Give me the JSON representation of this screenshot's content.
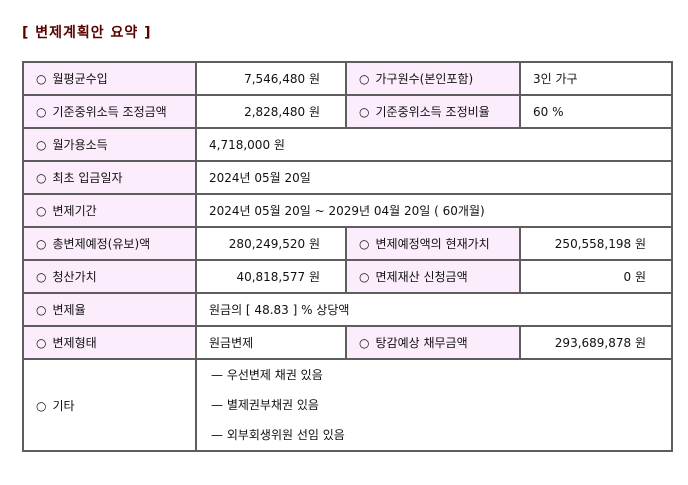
{
  "title": "[ 변제계획안 요약 ]",
  "bullet": "○",
  "colors": {
    "title": "#5a0000",
    "label_bg": "#fcedfc",
    "border": "#5e5e5e"
  },
  "rows": {
    "income": {
      "label": "월평균수입",
      "value": "7,546,480 원"
    },
    "household": {
      "label": "가구원수(본인포함)",
      "value": "3인 가구"
    },
    "median_adj_amount": {
      "label": "기준중위소득 조정금액",
      "value": "2,828,480 원"
    },
    "median_adj_ratio": {
      "label": "기준중위소득 조정비율",
      "value": "60 %"
    },
    "disposable": {
      "label": "월가용소득",
      "value": "4,718,000 원"
    },
    "first_payment": {
      "label": "최초 입금일자",
      "value": "2024년 05월 20일"
    },
    "period": {
      "label": "변제기간",
      "value": "2024년 05월 20일 ~ 2029년 04월 20일 ( 60개월)"
    },
    "total_planned": {
      "label": "총변제예정(유보)액",
      "value": "280,249,520 원"
    },
    "present_value": {
      "label": "변제예정액의 현재가치",
      "value": "250,558,198 원"
    },
    "liquidation": {
      "label": "청산가치",
      "value": "40,818,577 원"
    },
    "exempt": {
      "label": "면제재산 신청금액",
      "value": "0 원"
    },
    "rate": {
      "label": "변제율",
      "value": "원금의 [ 48.83 ] % 상당액"
    },
    "type": {
      "label": "변제형태",
      "value": "원금변제"
    },
    "expected_debt": {
      "label": "탕감예상 채무금액",
      "value": "293,689,878 원"
    },
    "other": {
      "label": "기타",
      "items": [
        "— 우선변제 채권 있음",
        "— 별제권부채권 있음",
        "— 외부회생위원 선임 있음"
      ]
    }
  }
}
